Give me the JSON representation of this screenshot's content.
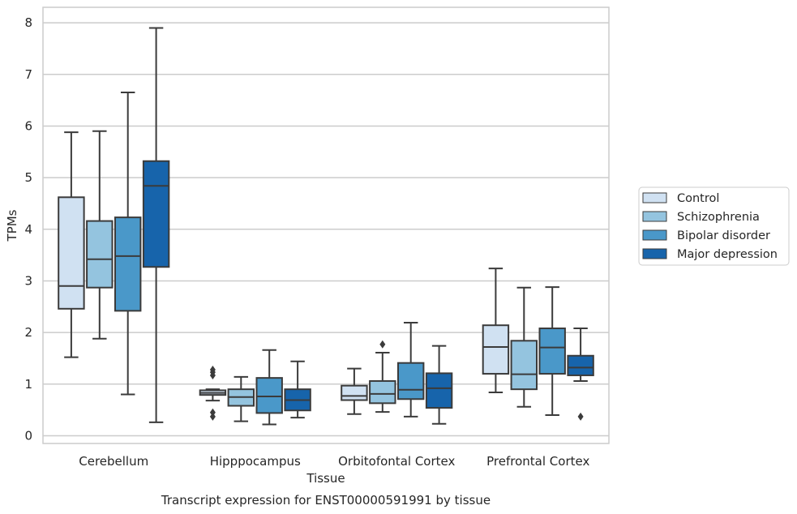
{
  "caption": "Transcript expression for ENST00000591991 by tissue",
  "chart_data": {
    "type": "box",
    "title": "",
    "xlabel": "Tissue",
    "ylabel": "TPMs",
    "ylim": [
      -0.15,
      8.3
    ],
    "yticks": [
      0,
      1,
      2,
      3,
      4,
      5,
      6,
      7,
      8
    ],
    "grid": "horizontal",
    "legend_position": "right",
    "categories": [
      "Cerebellum",
      "Hipppocampus",
      "Orbitofontal Cortex",
      "Prefrontal Cortex"
    ],
    "series": [
      {
        "name": "Control",
        "color": "#d0e1f2",
        "boxes": [
          {
            "whislo": 1.52,
            "q1": 2.46,
            "med": 2.9,
            "q3": 4.62,
            "whishi": 5.88,
            "fliers": []
          },
          {
            "whislo": 0.68,
            "q1": 0.79,
            "med": 0.83,
            "q3": 0.88,
            "whishi": 0.9,
            "fliers": [
              1.17,
              1.23,
              1.28,
              0.37,
              0.45
            ]
          },
          {
            "whislo": 0.42,
            "q1": 0.69,
            "med": 0.77,
            "q3": 0.97,
            "whishi": 1.3,
            "fliers": []
          },
          {
            "whislo": 0.84,
            "q1": 1.2,
            "med": 1.72,
            "q3": 2.14,
            "whishi": 3.24,
            "fliers": []
          }
        ]
      },
      {
        "name": "Schizophrenia",
        "color": "#94c4df",
        "boxes": [
          {
            "whislo": 1.88,
            "q1": 2.87,
            "med": 3.42,
            "q3": 4.16,
            "whishi": 5.9,
            "fliers": []
          },
          {
            "whislo": 0.28,
            "q1": 0.58,
            "med": 0.75,
            "q3": 0.9,
            "whishi": 1.14,
            "fliers": []
          },
          {
            "whislo": 0.46,
            "q1": 0.63,
            "med": 0.81,
            "q3": 1.06,
            "whishi": 1.61,
            "fliers": [
              1.77
            ]
          },
          {
            "whislo": 0.56,
            "q1": 0.9,
            "med": 1.19,
            "q3": 1.84,
            "whishi": 2.87,
            "fliers": []
          }
        ]
      },
      {
        "name": "Bipolar disorder",
        "color": "#4a98c9",
        "boxes": [
          {
            "whislo": 0.8,
            "q1": 2.42,
            "med": 3.48,
            "q3": 4.23,
            "whishi": 6.65,
            "fliers": []
          },
          {
            "whislo": 0.22,
            "q1": 0.44,
            "med": 0.76,
            "q3": 1.12,
            "whishi": 1.66,
            "fliers": []
          },
          {
            "whislo": 0.37,
            "q1": 0.71,
            "med": 0.89,
            "q3": 1.41,
            "whishi": 2.19,
            "fliers": []
          },
          {
            "whislo": 0.4,
            "q1": 1.2,
            "med": 1.71,
            "q3": 2.08,
            "whishi": 2.88,
            "fliers": []
          }
        ]
      },
      {
        "name": "Major depression",
        "color": "#1764ab",
        "boxes": [
          {
            "whislo": 0.26,
            "q1": 3.27,
            "med": 4.84,
            "q3": 5.32,
            "whishi": 7.9,
            "fliers": []
          },
          {
            "whislo": 0.35,
            "q1": 0.49,
            "med": 0.69,
            "q3": 0.9,
            "whishi": 1.44,
            "fliers": []
          },
          {
            "whislo": 0.23,
            "q1": 0.54,
            "med": 0.92,
            "q3": 1.21,
            "whishi": 1.74,
            "fliers": []
          },
          {
            "whislo": 1.06,
            "q1": 1.17,
            "med": 1.32,
            "q3": 1.55,
            "whishi": 2.08,
            "fliers": [
              0.37
            ]
          }
        ]
      }
    ]
  }
}
